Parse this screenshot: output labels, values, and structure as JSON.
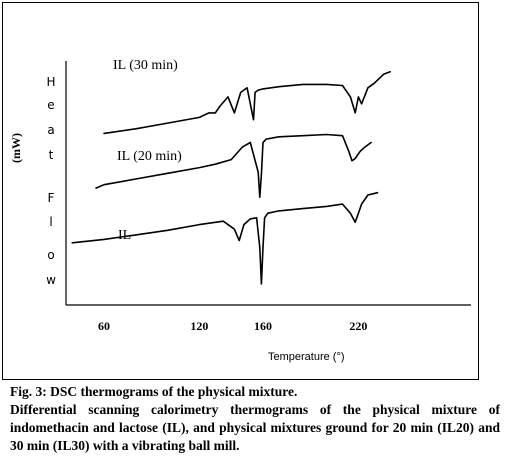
{
  "chart_data": {
    "type": "line",
    "title": "",
    "ylabel": "(mW)",
    "ylabel_vertical": [
      "H",
      "e",
      "a",
      "t",
      "F",
      "l",
      "o",
      "w"
    ],
    "xlabel": "Temperature (°)",
    "x_ticks": [
      "60",
      "120",
      "160",
      "220"
    ],
    "grid": false,
    "series": [
      {
        "name": "IL (30 min)",
        "x": [
          60,
          80,
          100,
          120,
          126,
          130,
          133,
          138,
          142,
          146,
          150,
          154,
          155,
          157,
          160,
          170,
          185,
          200,
          210,
          215,
          218,
          220,
          222,
          226,
          230,
          236,
          240
        ],
        "y": [
          0.7,
          0.72,
          0.745,
          0.77,
          0.79,
          0.79,
          0.82,
          0.86,
          0.79,
          0.88,
          0.9,
          0.76,
          0.88,
          0.89,
          0.895,
          0.905,
          0.915,
          0.915,
          0.91,
          0.86,
          0.79,
          0.86,
          0.83,
          0.9,
          0.92,
          0.96,
          0.97
        ]
      },
      {
        "name": "IL (20 min)",
        "x": [
          55,
          60,
          80,
          100,
          120,
          130,
          140,
          147,
          152,
          157,
          158,
          159,
          160,
          162,
          170,
          185,
          200,
          210,
          214,
          216,
          218,
          221,
          224,
          228
        ],
        "y": [
          0.46,
          0.475,
          0.5,
          0.525,
          0.55,
          0.565,
          0.585,
          0.64,
          0.66,
          0.53,
          0.42,
          0.52,
          0.66,
          0.675,
          0.685,
          0.69,
          0.695,
          0.69,
          0.62,
          0.58,
          0.59,
          0.62,
          0.64,
          0.66
        ]
      },
      {
        "name": "IL",
        "x": [
          40,
          60,
          80,
          100,
          120,
          135,
          142,
          145,
          148,
          152,
          156,
          158,
          159,
          160,
          161,
          163,
          170,
          185,
          200,
          210,
          215,
          218,
          222,
          226,
          232
        ],
        "y": [
          0.22,
          0.235,
          0.255,
          0.275,
          0.3,
          0.315,
          0.28,
          0.23,
          0.3,
          0.325,
          0.33,
          0.2,
          0.04,
          0.2,
          0.33,
          0.35,
          0.36,
          0.37,
          0.38,
          0.39,
          0.35,
          0.31,
          0.39,
          0.43,
          0.44
        ]
      }
    ]
  },
  "caption": {
    "title": "Fig. 3: DSC thermograms of the physical mixture.",
    "body": "Differential scanning calorimetry thermograms of the physical mixture of indomethacin and lactose (IL), and physical mixtures ground for 20 min (IL20) and 30 min (IL30) with a vibrating ball mill."
  }
}
